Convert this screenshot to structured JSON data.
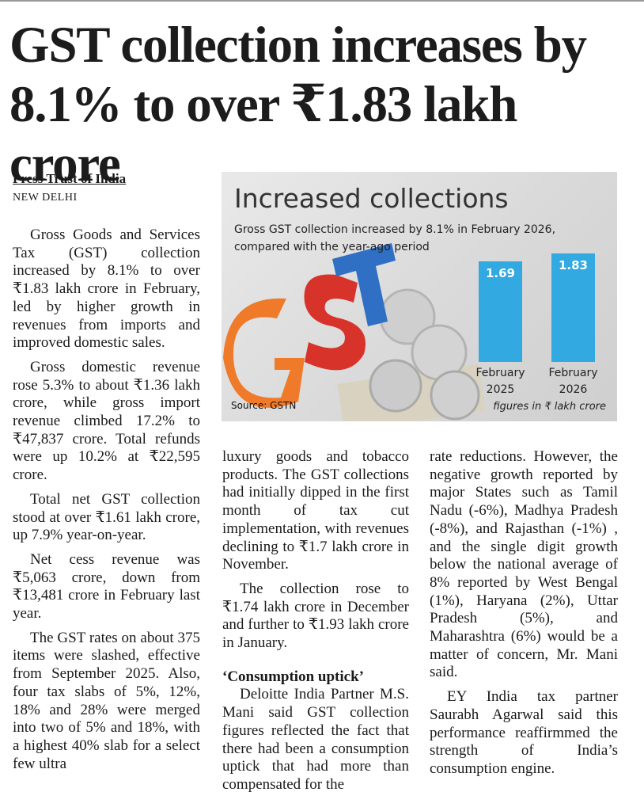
{
  "headline": "GST collection increases by 8.1% to over ₹1.83 lakh crore",
  "byline": "Press Trust of India",
  "dateline": "NEW DELHI",
  "columns": [
    [
      {
        "text": "Gross Goods and Services Tax (GST) collection increased by 8.1% to over ₹1.83 lakh crore in February, led by higher growth in revenues from imports and improved domestic sales."
      },
      {
        "text": "Gross domestic revenue rose 5.3% to about ₹1.36 lakh crore, while gross import revenue climbed 17.2% to ₹47,837 crore. Total refunds were up 10.2% at ₹22,595 crore."
      },
      {
        "text": "Total net GST collection stood at over ₹1.61 lakh crore, up 7.9% year-on-year."
      },
      {
        "text": "Net cess revenue was ₹5,063 crore, down from ₹13,481 crore in February last year."
      },
      {
        "text": "The GST rates on about 375 items were slashed, effective from September 2025. Also, four tax slabs of 5%, 12%, 18% and 28% were merged into two of 5% and 18%, with a highest 40% slab for a select few ultra"
      }
    ],
    [
      {
        "text": "luxury goods and tobacco products. The GST collections had initially dipped in the first month of tax cut implementation, with revenues declining to ₹1.7 lakh crore in November."
      },
      {
        "text": "The collection rose to ₹1.74 lakh crore in December and further to ₹1.93 lakh crore in January."
      },
      {
        "subhead": "‘Consumption uptick’"
      },
      {
        "text": "Deloitte India Partner M.S. Mani said GST collection figures reflected the fact that there had been a consumption uptick that had more than compensated for the"
      }
    ],
    [
      {
        "text": "rate reductions. However, the negative growth reported by major States such as Tamil Nadu (-6%), Madhya Pradesh (-8%), and Rajasthan (-1%) , and the single digit growth below the national average of 8% reported by West Bengal (1%), Haryana (2%), Uttar Pradesh (5%), and Maharashtra (6%) would be a matter of concern, Mr. Mani said."
      },
      {
        "text": "EY India tax partner Saurabh Agarwal said this performance reaffirmmed the strength of India’s consumption engine."
      }
    ]
  ],
  "chart_data": {
    "type": "bar",
    "title": "Increased collections",
    "subtitle": "Gross GST collection increased by 8.1% in February 2026, compared with the year-ago period",
    "categories": [
      "February 2025",
      "February 2026"
    ],
    "values": [
      1.69,
      1.83
    ],
    "color": "#33a9e2",
    "source": "Source: GSTN",
    "note": "figures in ₹ lakh crore"
  }
}
